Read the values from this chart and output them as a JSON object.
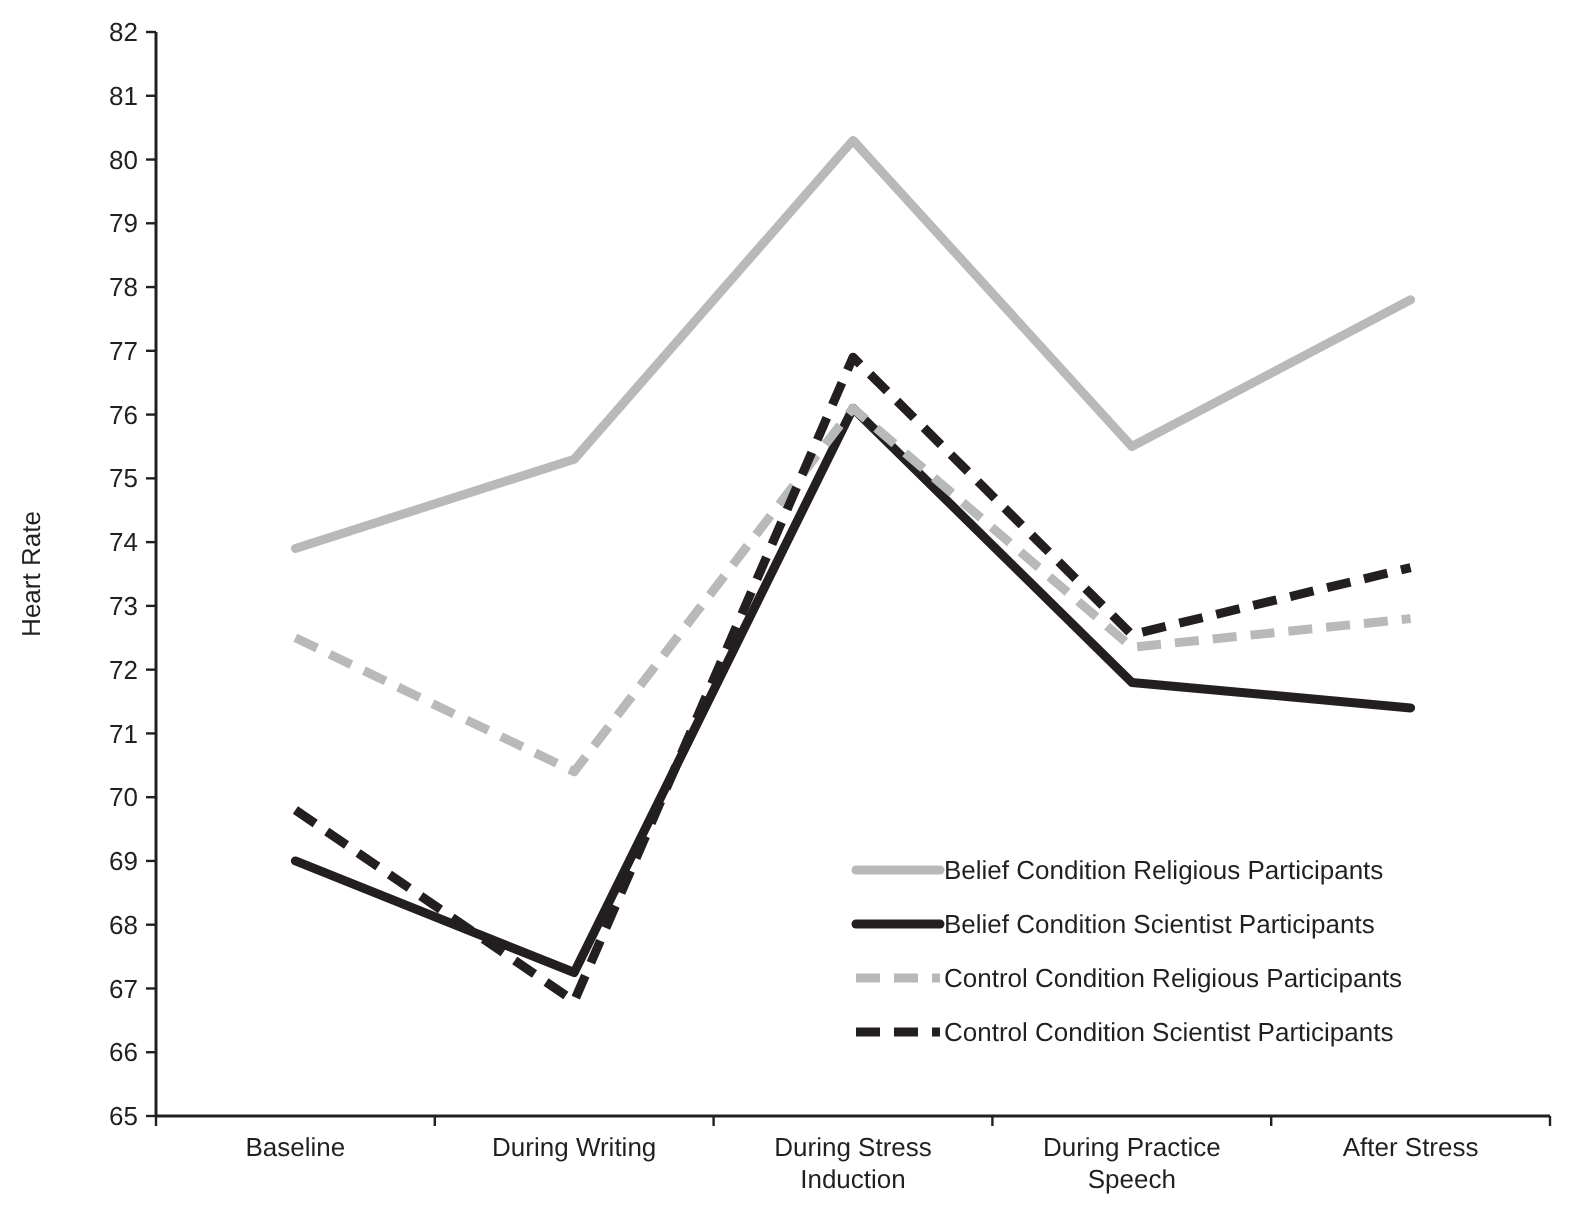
{
  "chart_data": {
    "type": "line",
    "ylabel": "Heart Rate",
    "categories": [
      "Baseline",
      "During Writing",
      "During Stress Induction",
      "During Practice Speech",
      "After Stress"
    ],
    "series": [
      {
        "name": "Belief Condition Religious Participants",
        "color": "#b8b9bb",
        "line_style": "solid",
        "values": [
          73.9,
          75.3,
          80.3,
          75.5,
          77.8
        ]
      },
      {
        "name": "Belief Condition Scientist Participants",
        "color": "#231f20",
        "line_style": "solid",
        "values": [
          69.0,
          67.25,
          76.1,
          71.8,
          71.4
        ]
      },
      {
        "name": "Control Condition Religious Participants",
        "color": "#b8b9bb",
        "line_style": "dashed",
        "values": [
          72.5,
          70.4,
          76.1,
          72.35,
          72.8
        ]
      },
      {
        "name": "Control Condition Scientist Participants",
        "color": "#231f20",
        "line_style": "dashed",
        "values": [
          69.8,
          66.8,
          76.9,
          72.55,
          73.6
        ]
      }
    ],
    "ylim": [
      65,
      82
    ],
    "yticks": [
      65,
      66,
      67,
      68,
      69,
      70,
      71,
      72,
      73,
      74,
      75,
      76,
      77,
      78,
      79,
      80,
      81,
      82
    ],
    "grid": false,
    "legend": "bottom right",
    "marker": "none"
  }
}
